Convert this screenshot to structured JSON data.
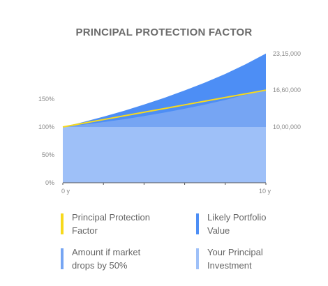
{
  "chart_data": {
    "type": "area",
    "title": "PRINCIPAL PROTECTION FACTOR",
    "x_tick_labels": [
      "0 y",
      "10 y"
    ],
    "x_range": [
      0,
      10
    ],
    "y_range_percent": [
      0,
      250
    ],
    "left_tick_labels": [
      "0%",
      "50%",
      "100%",
      "150%"
    ],
    "left_tick_values_percent": [
      0,
      50,
      100,
      150
    ],
    "right_value_labels": [
      "23,15,000",
      "16,60,000",
      "10,00,000"
    ],
    "right_value_labels_percent": [
      231.5,
      166,
      100
    ],
    "x": [
      0,
      1,
      2,
      3,
      4,
      5,
      6,
      7,
      8,
      9,
      10
    ],
    "series": [
      {
        "name": "Likely Portfolio Value",
        "kind": "area",
        "color": "#4d8ef5",
        "values_percent": [
          100,
          108.8,
          118.4,
          128.8,
          140.1,
          152.2,
          165.4,
          179.6,
          195,
          212.4,
          231.5
        ]
      },
      {
        "name": "Principal Protection Factor",
        "kind": "line",
        "color": "#f7d91c",
        "values_percent": [
          100,
          106.6,
          113.2,
          119.8,
          126.4,
          133,
          139.6,
          146.2,
          152.8,
          159.4,
          166
        ]
      },
      {
        "name": "Amount if market drops by 50%",
        "kind": "area",
        "color": "#76a5f3",
        "values_percent": [
          100,
          104.1,
          108.7,
          113.8,
          119.5,
          125.8,
          132.6,
          140.2,
          148.5,
          157.6,
          166
        ]
      },
      {
        "name": "Your Principal Investment",
        "kind": "area",
        "color": "#9ec0f8",
        "values_percent": [
          100,
          100,
          100,
          100,
          100,
          100,
          100,
          100,
          100,
          100,
          100
        ]
      }
    ],
    "legend": {
      "placement": "bottom",
      "items": [
        {
          "label": "Principal Protection Factor",
          "color": "#f7d91c"
        },
        {
          "label": "Likely Portfolio Value",
          "color": "#4d8ef5"
        },
        {
          "label": "Amount if market drops by 50%",
          "color": "#76a5f3"
        },
        {
          "label": "Your Principal Investment",
          "color": "#9ec0f8"
        }
      ]
    },
    "grid": false
  }
}
